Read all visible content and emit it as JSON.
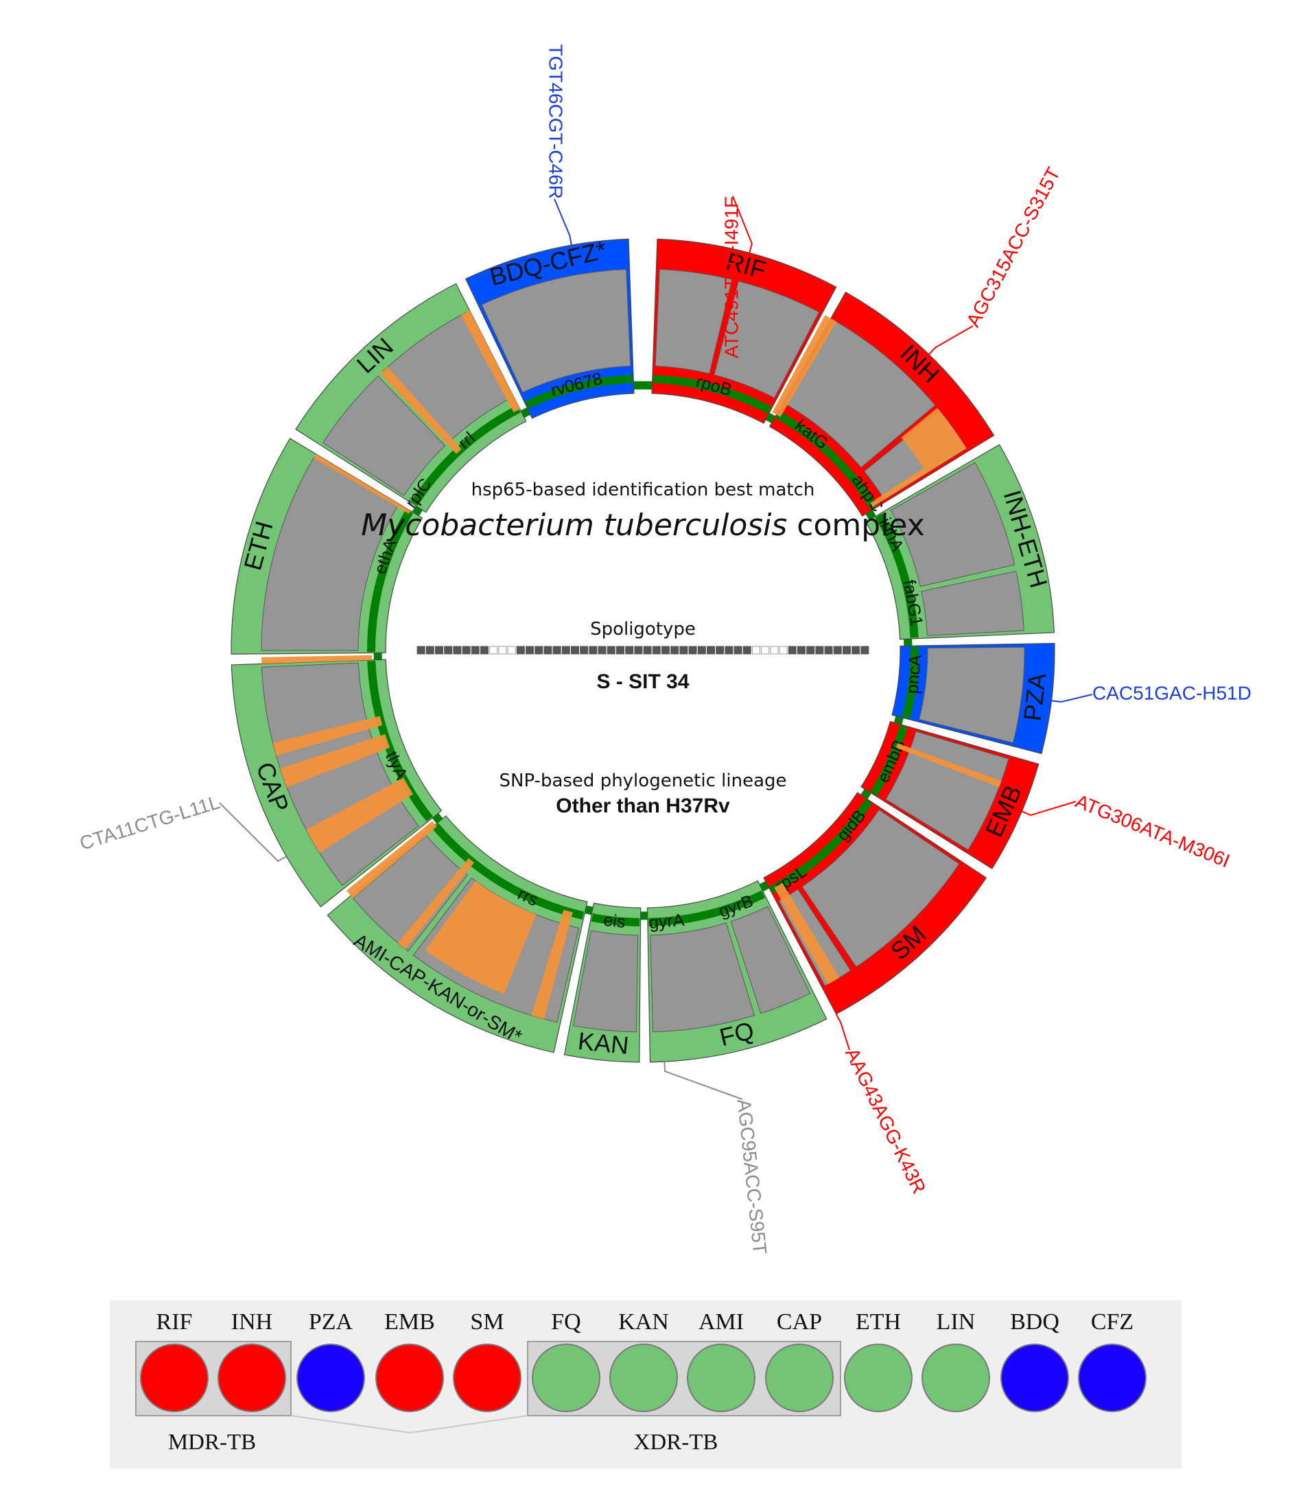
{
  "center": {
    "identification_title": "hsp65-based identification best match",
    "species_italic": "Mycobacterium tuberculosis",
    "species_suffix": " complex",
    "spoligotype_title": "Spoligotype",
    "spoligotype_pattern": "11111111000111111111111111111111111110000111111111",
    "spoligotype_result": "S - SIT 34",
    "lineage_title": "SNP-based phylogenetic lineage",
    "lineage_result": "Other than H37Rv"
  },
  "colors": {
    "resistant": "#ff0000",
    "susceptible": "#74c476",
    "intermediate": "#0050ff",
    "coverage_gray": "#969696",
    "low_coverage_orange": "#f0913b",
    "track_green": "#008000",
    "mutation_red": "#ff0000",
    "mutation_blue": "#1a3fe0",
    "mutation_gray": "#8c8c8c",
    "legend_resistant": "#ff0000",
    "legend_susceptible": "#74c476",
    "legend_intermediate": "#1a00ff",
    "legend_background": "#efefef"
  },
  "drug_segments": [
    {
      "drug": "RIF",
      "status": "resistant",
      "genes": [
        "rpoB"
      ]
    },
    {
      "drug": "INH",
      "status": "resistant",
      "genes": [
        "katG",
        "ahpC"
      ]
    },
    {
      "drug": "INH-ETH",
      "status": "susceptible",
      "genes": [
        "inhA",
        "fabG1"
      ]
    },
    {
      "drug": "PZA",
      "status": "intermediate",
      "genes": [
        "pncA"
      ]
    },
    {
      "drug": "EMB",
      "status": "resistant",
      "genes": [
        "embB"
      ]
    },
    {
      "drug": "SM",
      "status": "resistant",
      "genes": [
        "gidB",
        "rpsL"
      ]
    },
    {
      "drug": "FQ",
      "status": "susceptible",
      "genes": [
        "gyrA",
        "gyrB"
      ]
    },
    {
      "drug": "KAN",
      "status": "susceptible",
      "genes": [
        "eis"
      ]
    },
    {
      "drug": "AMI-CAP-KAN-or-SM*",
      "status": "susceptible",
      "genes": [
        "rrs"
      ]
    },
    {
      "drug": "CAP",
      "status": "susceptible",
      "genes": [
        "tlyA"
      ]
    },
    {
      "drug": "ETH",
      "status": "susceptible",
      "genes": [
        "ethA"
      ]
    },
    {
      "drug": "LIN",
      "status": "susceptible",
      "genes": [
        "rplC",
        "rrl"
      ]
    },
    {
      "drug": "BDQ-CFZ*",
      "status": "intermediate",
      "genes": [
        "rv0678"
      ]
    }
  ],
  "mutations": [
    {
      "label": "ATC491TTC-I491F",
      "color_key": "mutation_red"
    },
    {
      "label": "AGC315ACC-S315T",
      "color_key": "mutation_red"
    },
    {
      "label": "CAC51GAC-H51D",
      "color_key": "mutation_blue"
    },
    {
      "label": "ATG306ATA-M306I",
      "color_key": "mutation_red"
    },
    {
      "label": "AAG43AGG-K43R",
      "color_key": "mutation_red"
    },
    {
      "label": "AGC95ACC-S95T",
      "color_key": "mutation_gray"
    },
    {
      "label": "CTA11CTG-L11L",
      "color_key": "mutation_gray"
    },
    {
      "label": "TGT46CGT-C46R",
      "color_key": "mutation_blue"
    }
  ],
  "legend": {
    "drugs": [
      {
        "name": "RIF",
        "status": "resistant"
      },
      {
        "name": "INH",
        "status": "resistant"
      },
      {
        "name": "PZA",
        "status": "intermediate"
      },
      {
        "name": "EMB",
        "status": "resistant"
      },
      {
        "name": "SM",
        "status": "resistant"
      },
      {
        "name": "FQ",
        "status": "susceptible"
      },
      {
        "name": "KAN",
        "status": "susceptible"
      },
      {
        "name": "AMI",
        "status": "susceptible"
      },
      {
        "name": "CAP",
        "status": "susceptible"
      },
      {
        "name": "ETH",
        "status": "susceptible"
      },
      {
        "name": "LIN",
        "status": "susceptible"
      },
      {
        "name": "BDQ",
        "status": "intermediate"
      },
      {
        "name": "CFZ",
        "status": "intermediate"
      }
    ],
    "mdr_label": "MDR-TB",
    "xdr_label": "XDR-TB"
  }
}
